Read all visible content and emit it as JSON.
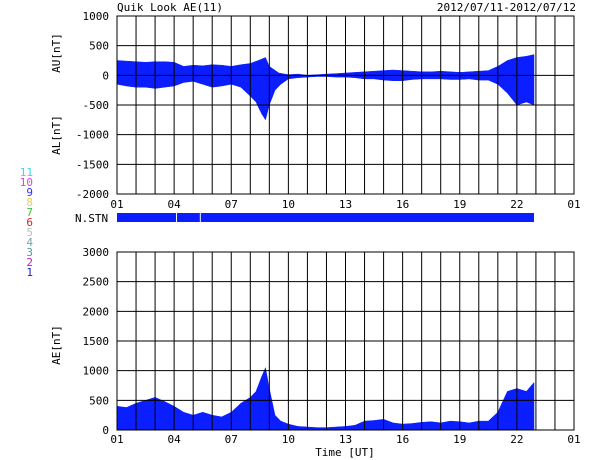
{
  "header": {
    "title": "Quik Look AE(11)",
    "date_range": "2012/07/11-2012/07/12"
  },
  "colors": {
    "fill": "#0a1eff",
    "grid": "#000000",
    "background": "#ffffff"
  },
  "stations": {
    "label": "N.STN",
    "numbers": [
      "11",
      "10",
      "9",
      "8",
      "7",
      "6",
      "5",
      "4",
      "3",
      "2",
      "1"
    ],
    "colors": [
      "#40d0f0",
      "#e040e0",
      "#3030ff",
      "#f0d040",
      "#40c040",
      "#e02020",
      "#c0c0c0",
      "#80a0a0",
      "#40a0a0",
      "#c020c0",
      "#2020c0"
    ],
    "gaps_hours": [
      4.1,
      5.35
    ],
    "end_hour": 22.9
  },
  "chart_data": [
    {
      "type": "area",
      "name": "AU/AL",
      "ylabel_upper": "AU[nT]",
      "ylabel_lower": "AL[nT]",
      "ylim": [
        -2000,
        1000
      ],
      "yticks": [
        "1000",
        "500",
        "0",
        "-500",
        "-1000",
        "-1500",
        "-2000"
      ],
      "yticks_values": [
        1000,
        500,
        0,
        -500,
        -1000,
        -1500,
        -2000
      ],
      "xlim_hours": [
        1,
        25
      ],
      "xticks": [
        "01",
        "04",
        "07",
        "10",
        "13",
        "16",
        "19",
        "22",
        "01"
      ],
      "xticks_hours": [
        1,
        4,
        7,
        10,
        13,
        16,
        19,
        22,
        25
      ],
      "grid": true,
      "series": [
        {
          "key": "AU",
          "x": [
            1.0,
            1.5,
            2.0,
            2.5,
            3.0,
            3.5,
            4.0,
            4.5,
            5.0,
            5.5,
            6.0,
            6.5,
            7.0,
            7.5,
            8.0,
            8.5,
            8.8,
            9.0,
            9.5,
            10.0,
            10.5,
            11.0,
            11.5,
            12.0,
            12.5,
            13.0,
            13.5,
            14.0,
            14.5,
            15.0,
            15.5,
            16.0,
            16.5,
            17.0,
            17.5,
            18.0,
            18.5,
            19.0,
            19.5,
            20.0,
            20.5,
            21.0,
            21.5,
            22.0,
            22.5,
            22.9
          ],
          "values": [
            250,
            240,
            230,
            220,
            230,
            230,
            220,
            150,
            170,
            160,
            180,
            170,
            150,
            180,
            200,
            260,
            300,
            150,
            40,
            10,
            20,
            0,
            10,
            20,
            30,
            40,
            50,
            60,
            70,
            80,
            90,
            80,
            70,
            60,
            60,
            70,
            60,
            50,
            60,
            70,
            80,
            150,
            250,
            300,
            320,
            350
          ]
        },
        {
          "key": "AL",
          "x": [
            1.0,
            1.5,
            2.0,
            2.5,
            3.0,
            3.5,
            4.0,
            4.5,
            5.0,
            5.5,
            6.0,
            6.5,
            7.0,
            7.5,
            8.0,
            8.3,
            8.6,
            8.8,
            9.0,
            9.3,
            9.6,
            10.0,
            10.5,
            11.0,
            11.5,
            12.0,
            12.5,
            13.0,
            13.5,
            14.0,
            14.5,
            15.0,
            15.5,
            16.0,
            16.5,
            17.0,
            17.5,
            18.0,
            18.5,
            19.0,
            19.5,
            20.0,
            20.5,
            21.0,
            21.5,
            22.0,
            22.5,
            22.9
          ],
          "values": [
            -150,
            -180,
            -200,
            -200,
            -220,
            -200,
            -180,
            -120,
            -100,
            -150,
            -200,
            -180,
            -150,
            -200,
            -350,
            -450,
            -650,
            -750,
            -500,
            -250,
            -150,
            -60,
            -40,
            -30,
            -20,
            -20,
            -30,
            -30,
            -40,
            -60,
            -60,
            -80,
            -90,
            -90,
            -70,
            -60,
            -60,
            -60,
            -70,
            -70,
            -60,
            -80,
            -80,
            -150,
            -300,
            -500,
            -450,
            -500
          ]
        }
      ]
    },
    {
      "type": "area",
      "name": "AE",
      "ylabel": "AE[nT]",
      "ylim": [
        0,
        3000
      ],
      "yticks": [
        "3000",
        "2500",
        "2000",
        "1500",
        "1000",
        "500",
        "0"
      ],
      "yticks_values": [
        3000,
        2500,
        2000,
        1500,
        1000,
        500,
        0
      ],
      "xlim_hours": [
        1,
        25
      ],
      "xticks": [
        "01",
        "04",
        "07",
        "10",
        "13",
        "16",
        "19",
        "22",
        "01"
      ],
      "xticks_hours": [
        1,
        4,
        7,
        10,
        13,
        16,
        19,
        22,
        25
      ],
      "xlabel": "Time [UT]",
      "grid": true,
      "series": [
        {
          "key": "AE",
          "x": [
            1.0,
            1.5,
            2.0,
            2.5,
            3.0,
            3.5,
            4.0,
            4.5,
            5.0,
            5.5,
            6.0,
            6.5,
            7.0,
            7.5,
            8.0,
            8.3,
            8.6,
            8.8,
            9.0,
            9.3,
            9.6,
            10.0,
            10.5,
            11.0,
            11.5,
            12.0,
            12.5,
            13.0,
            13.5,
            14.0,
            14.5,
            15.0,
            15.5,
            16.0,
            16.5,
            17.0,
            17.5,
            18.0,
            18.5,
            19.0,
            19.5,
            20.0,
            20.5,
            21.0,
            21.5,
            22.0,
            22.5,
            22.9
          ],
          "values": [
            400,
            380,
            450,
            500,
            550,
            480,
            400,
            300,
            250,
            300,
            250,
            220,
            300,
            450,
            550,
            650,
            900,
            1050,
            700,
            250,
            150,
            100,
            60,
            50,
            40,
            40,
            50,
            60,
            80,
            150,
            160,
            180,
            120,
            100,
            110,
            130,
            140,
            120,
            150,
            140,
            120,
            150,
            150,
            300,
            650,
            700,
            650,
            800
          ]
        }
      ]
    }
  ]
}
